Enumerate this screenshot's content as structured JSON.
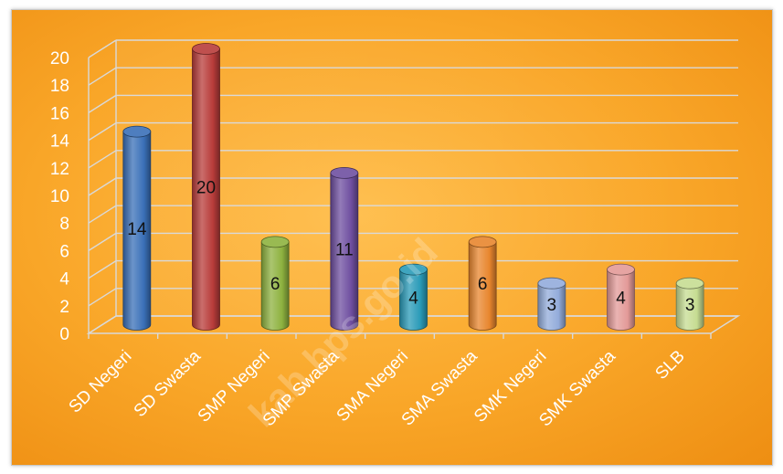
{
  "chart_data": {
    "type": "bar",
    "title": "",
    "xlabel": "",
    "ylabel": "",
    "ylim": [
      0,
      20
    ],
    "yticks": [
      0,
      2,
      4,
      6,
      8,
      10,
      12,
      14,
      16,
      18,
      20
    ],
    "grid": true,
    "legend": "none",
    "categories": [
      "SD Negeri",
      "SD Swasta",
      "SMP Negeri",
      "SMP Swasta",
      "SMA Negeri",
      "SMA Swasta",
      "SMK Negeri",
      "SMK Swasta",
      "SLB"
    ],
    "values": [
      14,
      20,
      6,
      11,
      4,
      6,
      3,
      4,
      3
    ],
    "data_labels": [
      "14",
      "20",
      "6",
      "11",
      "4",
      "6",
      "3",
      "4",
      "3"
    ],
    "colors": [
      "#3a70b8",
      "#b83c3a",
      "#8eb23f",
      "#6f4fa0",
      "#2a9bb8",
      "#e8862e",
      "#93acdb",
      "#e39a98",
      "#c6dc92"
    ],
    "background": "#f9a628"
  },
  "watermark": "kab bps.go.id"
}
